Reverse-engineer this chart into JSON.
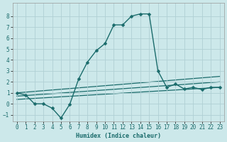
{
  "xlabel": "Humidex (Indice chaleur)",
  "bg_color": "#cce8ea",
  "grid_color": "#b0d0d4",
  "line_color": "#1a6b6b",
  "xlim": [
    -0.5,
    23.5
  ],
  "ylim": [
    -1.6,
    9.2
  ],
  "yticks": [
    -1,
    0,
    1,
    2,
    3,
    4,
    5,
    6,
    7,
    8
  ],
  "xticks": [
    0,
    1,
    2,
    3,
    4,
    5,
    6,
    7,
    8,
    9,
    10,
    11,
    12,
    13,
    14,
    15,
    16,
    17,
    18,
    19,
    20,
    21,
    22,
    23
  ],
  "main_curve": {
    "x": [
      0,
      1,
      2,
      3,
      4,
      5,
      6,
      7,
      8,
      9,
      10,
      11,
      12,
      13,
      14,
      15,
      16,
      17,
      18,
      19,
      20,
      21,
      22,
      23
    ],
    "y": [
      1,
      0.8,
      0.0,
      0.0,
      -0.4,
      -1.3,
      -0.05,
      2.25,
      3.8,
      4.85,
      5.5,
      7.2,
      7.2,
      8.0,
      8.2,
      8.2,
      3.0,
      1.5,
      1.8,
      1.35,
      1.5,
      1.3,
      1.5,
      1.5
    ]
  },
  "flat_lines": [
    {
      "x0": 0,
      "y0": 1.0,
      "x1": 23,
      "y1": 2.5
    },
    {
      "x0": 0,
      "y0": 0.7,
      "x1": 23,
      "y1": 2.0
    },
    {
      "x0": 0,
      "y0": 0.4,
      "x1": 23,
      "y1": 1.5
    }
  ]
}
